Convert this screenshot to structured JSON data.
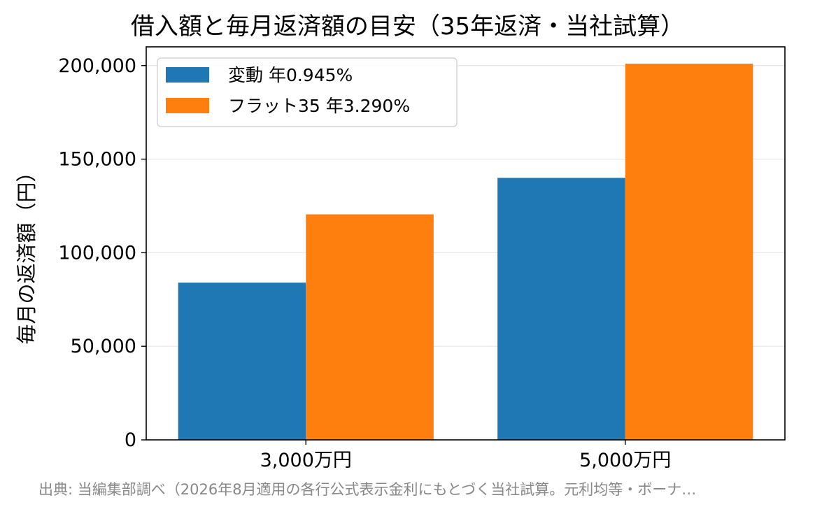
{
  "chart_data": {
    "type": "bar",
    "title": "借入額と毎月返済額の目安（35年返済・当社試算）",
    "xlabel": "",
    "ylabel": "毎月の返済額（円）",
    "categories": [
      "3,000万円",
      "5,000万円"
    ],
    "series": [
      {
        "name": "変動 年0.945%",
        "color": "#1f77b4",
        "values": [
          84000,
          140000
        ]
      },
      {
        "name": "フラット35 年3.290%",
        "color": "#ff7f0e",
        "values": [
          120500,
          201000
        ]
      }
    ],
    "ylim": [
      0,
      210000
    ],
    "yticks": [
      0,
      50000,
      100000,
      150000,
      200000
    ],
    "ytick_labels": [
      "0",
      "50,000",
      "100,000",
      "150,000",
      "200,000"
    ],
    "grid": "y",
    "legend_position": "upper-left"
  },
  "footer": {
    "source": "出典: 当編集部調べ（2026年8月適用の各行公式表示金利にもとづく当社試算。元利均等・ボーナ…"
  }
}
